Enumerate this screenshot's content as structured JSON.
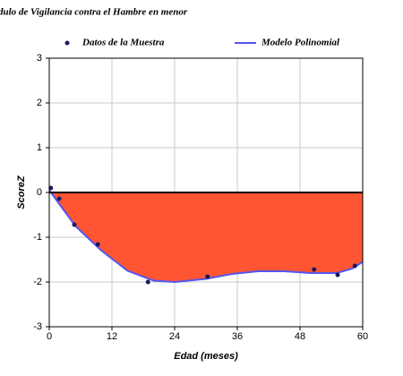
{
  "chart_data": {
    "type": "scatter-line",
    "title": "dulo de Vigilancia contra el Hambre en menor",
    "x_label": "Edad (meses)",
    "y_label": "ScoreZ",
    "xlim": [
      0,
      60
    ],
    "xticks": [
      0,
      12,
      24,
      36,
      48,
      60
    ],
    "ylim": [
      -3,
      3
    ],
    "yticks": [
      -3,
      -2,
      -1,
      0,
      1,
      2,
      3
    ],
    "grid": true,
    "legend": "top",
    "series": [
      {
        "name": "Datos de la Muestra",
        "type": "scatter",
        "color": "#1a1a5e",
        "x": [
          0.3,
          1.9,
          4.8,
          9.3,
          18.9,
          30.3,
          50.7,
          55.2,
          58.5
        ],
        "values": [
          0.1,
          -0.14,
          -0.72,
          -1.16,
          -2.0,
          -1.88,
          -1.72,
          -1.84,
          -1.64
        ]
      },
      {
        "name": "Modelo Polinomial",
        "type": "line",
        "color": "#5555ee",
        "area_color": "#ff5533",
        "x": [
          0,
          5,
          10,
          15,
          20,
          24,
          30,
          35,
          40,
          45,
          50,
          55,
          58,
          60
        ],
        "values": [
          0.05,
          -0.75,
          -1.3,
          -1.75,
          -1.97,
          -2.0,
          -1.93,
          -1.82,
          -1.76,
          -1.76,
          -1.8,
          -1.8,
          -1.7,
          -1.55
        ]
      }
    ]
  }
}
